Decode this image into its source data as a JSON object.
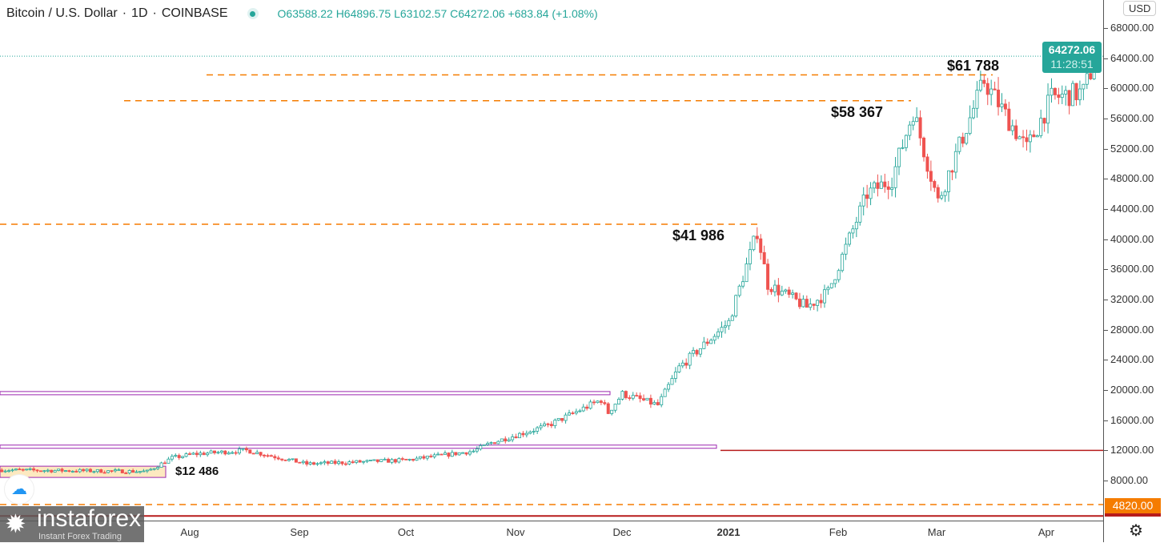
{
  "header": {
    "symbol": "Bitcoin / U.S. Dollar",
    "sep1": "·",
    "interval": "1D",
    "sep2": "·",
    "exchange": "COINBASE",
    "ohlc": "O63588.22 H64896.75 L63102.57 C64272.06 +683.84 (+1.08%)"
  },
  "axis": {
    "currency": "USD",
    "last_price": "64272.06",
    "countdown": "11:28:51",
    "level_label": "4820.00",
    "settings_icon": "gear-icon"
  },
  "watermark": {
    "brand": "instaforex",
    "tagline": "Instant Forex Trading"
  },
  "colors": {
    "up": "#26a69a",
    "down": "#ef5350",
    "level": "#f57c00",
    "zone": "#9c27b0",
    "support": "#b71c1c"
  },
  "chart_data": {
    "type": "candlestick",
    "title": "Bitcoin / U.S. Dollar · 1D · COINBASE",
    "ylim": [
      2000,
      71000
    ],
    "y_ticks": [
      "68000.00",
      "64000.00",
      "60000.00",
      "56000.00",
      "52000.00",
      "48000.00",
      "44000.00",
      "40000.00",
      "36000.00",
      "32000.00",
      "28000.00",
      "24000.00",
      "20000.00",
      "16000.00",
      "12000.00",
      "8000.00"
    ],
    "x_ticks": [
      "Aug",
      "Sep",
      "Oct",
      "Nov",
      "Dec",
      "2021",
      "Feb",
      "Mar",
      "Apr"
    ],
    "close_path": [
      [
        "2020-06-09",
        9400
      ],
      [
        "2020-07-20",
        9200
      ],
      [
        "2020-07-27",
        11000
      ],
      [
        "2020-08-02",
        11500
      ],
      [
        "2020-08-17",
        12000
      ],
      [
        "2020-09-03",
        10200
      ],
      [
        "2020-10-01",
        10700
      ],
      [
        "2020-10-20",
        11900
      ],
      [
        "2020-10-25",
        13000
      ],
      [
        "2020-11-10",
        15300
      ],
      [
        "2020-11-25",
        18700
      ],
      [
        "2020-11-27",
        17000
      ],
      [
        "2020-12-01",
        19500
      ],
      [
        "2020-12-11",
        18000
      ],
      [
        "2020-12-17",
        23000
      ],
      [
        "2020-12-31",
        29000
      ],
      [
        "2021-01-08",
        41000
      ],
      [
        "2021-01-11",
        34000
      ],
      [
        "2021-01-22",
        31000
      ],
      [
        "2021-01-28",
        33000
      ],
      [
        "2021-02-08",
        46000
      ],
      [
        "2021-02-15",
        48000
      ],
      [
        "2021-02-21",
        57000
      ],
      [
        "2021-02-28",
        45000
      ],
      [
        "2021-03-13",
        61000
      ],
      [
        "2021-03-25",
        52000
      ],
      [
        "2021-04-01",
        58700
      ],
      [
        "2021-04-10",
        59500
      ],
      [
        "2021-04-13",
        63500
      ],
      [
        "2021-04-14",
        64272.06
      ]
    ],
    "annotations": [
      {
        "text": "$61 788",
        "price": 61788
      },
      {
        "text": "$58 367",
        "price": 58367
      },
      {
        "text": "$41 986",
        "price": 41986
      },
      {
        "text": "$12 486",
        "price": 12486
      }
    ],
    "levels": [
      {
        "price": 4820,
        "style": "dashed"
      }
    ]
  }
}
